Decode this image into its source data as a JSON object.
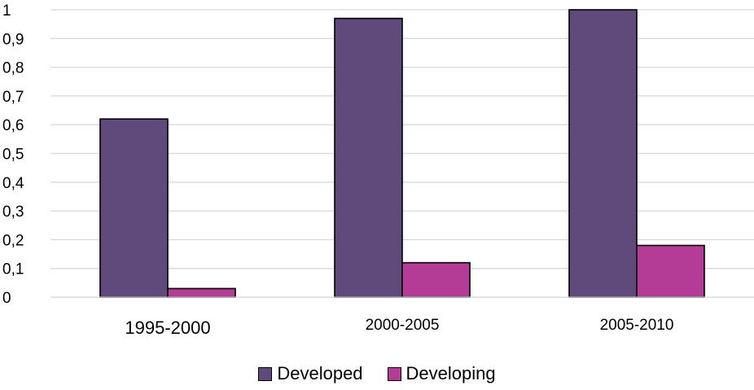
{
  "chart_data": {
    "type": "bar",
    "categories": [
      "1995-2000",
      "2000-2005",
      "2005-2010"
    ],
    "series": [
      {
        "name": "Developed",
        "values": [
          0.62,
          0.97,
          1.0
        ],
        "color": "#604a7b"
      },
      {
        "name": "Developing",
        "values": [
          0.03,
          0.12,
          0.18
        ],
        "color": "#b43c96"
      }
    ],
    "ylim": [
      0,
      1
    ],
    "yticks": [
      "0",
      "0,1",
      "0,2",
      "0,3",
      "0,4",
      "0,5",
      "0,6",
      "0,7",
      "0,8",
      "0,9",
      "1"
    ],
    "grid": true,
    "legend_position": "bottom",
    "title": "",
    "xlabel": "",
    "ylabel": ""
  }
}
